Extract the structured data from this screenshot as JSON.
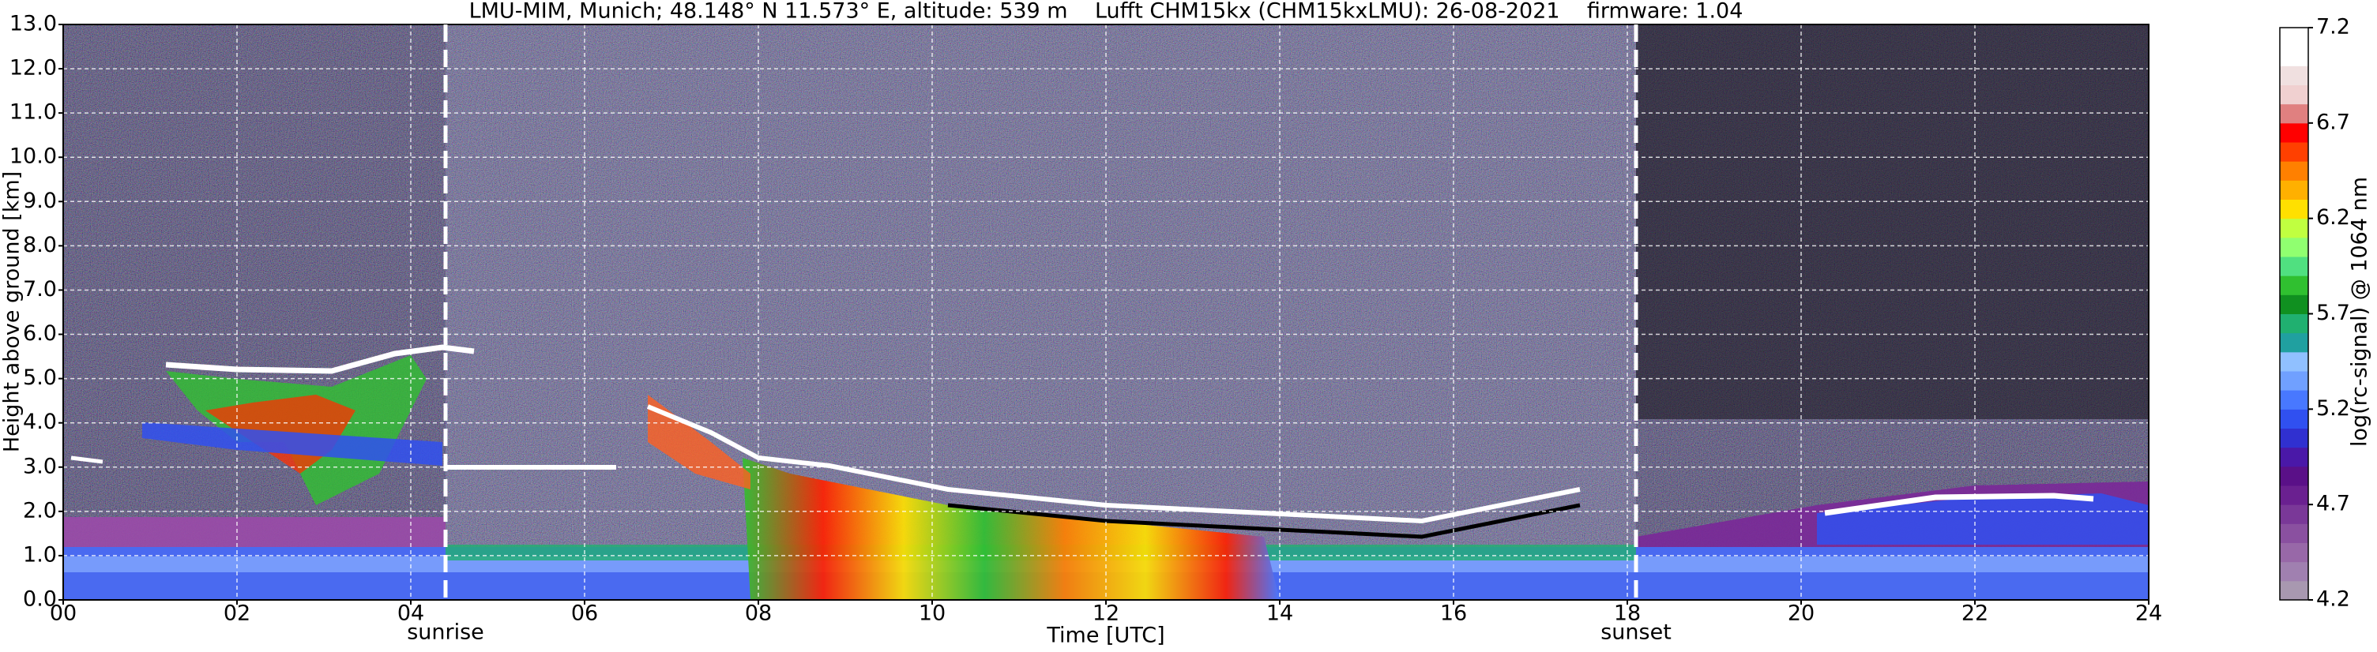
{
  "chart_data": {
    "type": "heatmap",
    "title": "LMU-MIM, Munich; 48.148° N 11.573° E, altitude: 539 m    Lufft CHM15kx (CHM15kxLMU): 26-08-2021    firmware: 1.04",
    "x_label": "Time [UTC]",
    "y_label": "Height above ground [km]",
    "xlim": [
      0,
      24
    ],
    "xticks": [
      {
        "value": 0,
        "label": "00"
      },
      {
        "value": 2,
        "label": "02"
      },
      {
        "value": 4,
        "label": "04"
      },
      {
        "value": 6,
        "label": "06"
      },
      {
        "value": 8,
        "label": "08"
      },
      10,
      12,
      14,
      16,
      18,
      20,
      22,
      24
    ],
    "ylim": [
      0,
      13
    ],
    "yticks": [
      {
        "value": 0,
        "label": "0.0"
      },
      {
        "value": 1,
        "label": "1.0"
      },
      {
        "value": 2,
        "label": "2.0"
      },
      {
        "value": 3,
        "label": "3.0"
      },
      {
        "value": 4,
        "label": "4.0"
      },
      {
        "value": 5,
        "label": "5.0"
      },
      {
        "value": 6,
        "label": "6.0"
      },
      {
        "value": 7,
        "label": "7.0"
      },
      {
        "value": 8,
        "label": "8.0"
      },
      {
        "value": 9,
        "label": "9.0"
      },
      {
        "value": 10,
        "label": "10.0"
      },
      {
        "value": 11,
        "label": "11.0"
      },
      {
        "value": 12,
        "label": "12.0"
      },
      {
        "value": 13,
        "label": "13.0"
      }
    ],
    "grid": true,
    "annotations": [
      {
        "text": "sunrise",
        "x": 4.4
      },
      {
        "text": "sunset",
        "x": 18.1
      }
    ],
    "colorbar": {
      "label": "log(rc-signal) @ 1064 nm",
      "clim": [
        4.2,
        7.2
      ],
      "ticks": [
        4.2,
        4.7,
        5.2,
        5.7,
        6.2,
        6.7,
        7.2
      ],
      "colors": [
        "#a898b0",
        "#a080b0",
        "#9868a8",
        "#8a50a0",
        "#7a3898",
        "#6a2090",
        "#5a1088",
        "#4a18a8",
        "#3030d0",
        "#3050f0",
        "#4878ff",
        "#70a0ff",
        "#90c0ff",
        "#20a0a0",
        "#20b070",
        "#109020",
        "#30c030",
        "#50e080",
        "#90ff70",
        "#c0ff40",
        "#ffe000",
        "#ffb000",
        "#ff8000",
        "#ff4000",
        "#ff0000",
        "#e08080",
        "#f0d0d0",
        "#f0e0e0",
        "#ffffff",
        "#ffffff"
      ]
    }
  }
}
